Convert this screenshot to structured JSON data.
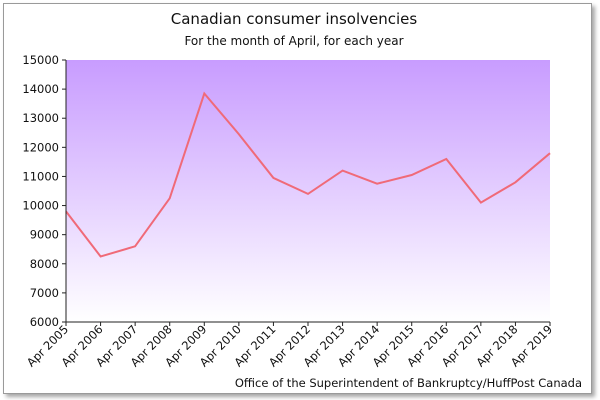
{
  "chart_data": {
    "type": "line",
    "title": "Canadian consumer insolvencies",
    "subtitle": "For the month of April, for each year",
    "source": "Office of the Superintendent of Bankruptcy/HuffPost Canada",
    "xlabel": "",
    "ylabel": "",
    "categories": [
      "Apr 2005",
      "Apr 2006",
      "Apr 2007",
      "Apr 2008",
      "Apr 2009",
      "Apr 2010",
      "Apr 2011",
      "Apr 2012",
      "Apr 2013",
      "Apr 2014",
      "Apr 2015",
      "Apr 2016",
      "Apr 2017",
      "Apr 2018",
      "Apr 2019"
    ],
    "series": [
      {
        "values": [
          9800,
          8250,
          8600,
          10250,
          13850,
          12450,
          10950,
          10400,
          11200,
          10750,
          11050,
          11600,
          10100,
          10800,
          11800
        ]
      }
    ],
    "ylim": [
      6000,
      15000
    ],
    "yticks": [
      6000,
      7000,
      8000,
      9000,
      10000,
      11000,
      12000,
      13000,
      14000,
      15000
    ],
    "grid": false,
    "legend": "none",
    "colors": {
      "line": "#f06a78",
      "plot_top": "#c89cff",
      "plot_bottom": "#ffffff",
      "axis": "#222222"
    }
  }
}
